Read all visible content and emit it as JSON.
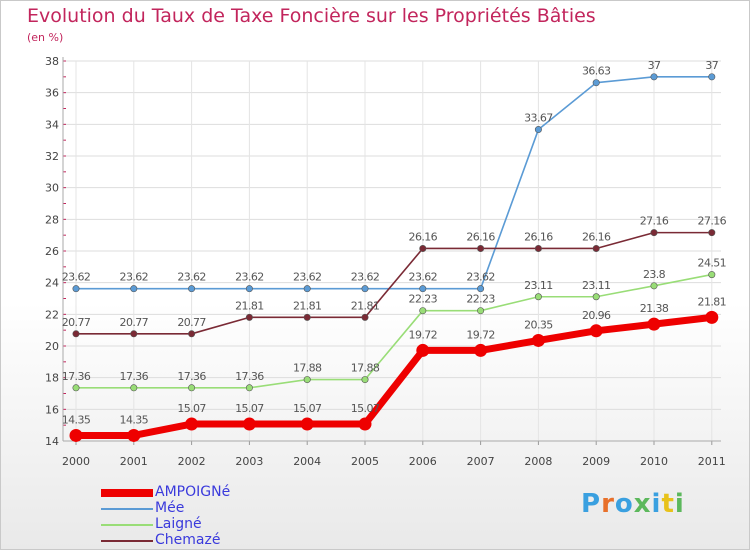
{
  "title": "Evolution du Taux de Taxe Foncière sur les Propriétés Bâties",
  "unit_label": "(en %)",
  "logo_text": "Proxiti",
  "logo_colors": [
    "#3aa0e0",
    "#e8702a",
    "#3aa0e0",
    "#5cb85c",
    "#3aa0e0",
    "#e8c21a",
    "#5cb85c"
  ],
  "chart_data": {
    "type": "line",
    "title": "Evolution du Taux de Taxe Foncière sur les Propriétés Bâties",
    "ylabel": "(en %)",
    "xlabel": "",
    "categories": [
      "2000",
      "2001",
      "2002",
      "2003",
      "2004",
      "2005",
      "2006",
      "2007",
      "2008",
      "2009",
      "2010",
      "2011"
    ],
    "ylim": [
      14,
      38
    ],
    "yticks": [
      14,
      16,
      18,
      20,
      22,
      24,
      26,
      28,
      30,
      32,
      34,
      36,
      38
    ],
    "grid": true,
    "legend_position": "bottom-left",
    "series": [
      {
        "name": "Mée",
        "color": "#5b9bd5",
        "values": [
          23.62,
          23.62,
          23.62,
          23.62,
          23.62,
          23.62,
          23.62,
          23.62,
          33.67,
          36.63,
          37,
          37
        ],
        "labels": [
          "23.62",
          "23.62",
          "23.62",
          "23.62",
          "23.62",
          "23.62",
          "23.62",
          "23.62",
          "33.67",
          "36.63",
          "37",
          "37"
        ]
      },
      {
        "name": "Chemazé",
        "color": "#7a2a35",
        "values": [
          20.77,
          20.77,
          20.77,
          21.81,
          21.81,
          21.81,
          26.16,
          26.16,
          26.16,
          26.16,
          27.16,
          27.16
        ],
        "labels": [
          "20.77",
          "20.77",
          "20.77",
          "21.81",
          "21.81",
          "21.81",
          "26.16",
          "26.16",
          "26.16",
          "26.16",
          "27.16",
          "27.16"
        ]
      },
      {
        "name": "Laigné",
        "color": "#99dd77",
        "values": [
          17.36,
          17.36,
          17.36,
          17.36,
          17.88,
          17.88,
          22.23,
          22.23,
          23.11,
          23.11,
          23.8,
          24.51
        ],
        "labels": [
          "17.36",
          "17.36",
          "17.36",
          "17.36",
          "17.88",
          "17.88",
          "22.23",
          "22.23",
          "23.11",
          "23.11",
          "23.8",
          "24.51"
        ]
      },
      {
        "name": "AMPOIGNé",
        "color": "#ee0000",
        "values": [
          14.35,
          14.35,
          15.07,
          15.07,
          15.07,
          15.07,
          19.72,
          19.72,
          20.35,
          20.96,
          21.38,
          21.81
        ],
        "labels": [
          "14.35",
          "14.35",
          "15.07",
          "15.07",
          "15.07",
          "15.07",
          "19.72",
          "19.72",
          "20.35",
          "20.96",
          "21.38",
          "21.81"
        ]
      }
    ],
    "legend": [
      "AMPOIGNé",
      "Mée",
      "Laigné",
      "Chemazé"
    ]
  }
}
